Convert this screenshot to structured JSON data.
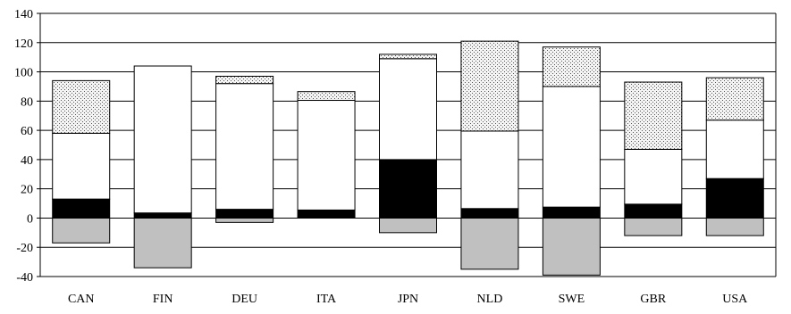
{
  "chart_data": {
    "type": "bar",
    "stacked": true,
    "title": "",
    "xlabel": "",
    "ylabel": "",
    "ylim": [
      -40,
      140
    ],
    "yticks": [
      -40,
      -20,
      0,
      20,
      40,
      60,
      80,
      100,
      120,
      140
    ],
    "grid": true,
    "legend": "none",
    "categories": [
      "CAN",
      "FIN",
      "DEU",
      "ITA",
      "JPN",
      "NLD",
      "SWE",
      "GBR",
      "USA"
    ],
    "series": [
      {
        "key": "s1",
        "fill": "#000000",
        "pattern": "solid",
        "values": [
          13,
          3.5,
          6,
          5.5,
          40,
          6.5,
          7.5,
          9.5,
          27
        ]
      },
      {
        "key": "s2",
        "fill": "#ffffff",
        "pattern": "solid",
        "values": [
          45,
          100.5,
          86,
          75,
          69,
          53,
          82.5,
          37.5,
          40
        ]
      },
      {
        "key": "s3",
        "fill": "#e8e8e8",
        "pattern": "dotted",
        "values": [
          36,
          0,
          5,
          6,
          3,
          61.5,
          27,
          46,
          29
        ]
      },
      {
        "key": "s4",
        "fill": "#c0c0c0",
        "pattern": "solid",
        "values": [
          -17,
          -34,
          -3,
          0,
          -10,
          -35,
          -39,
          -12,
          -12
        ]
      }
    ]
  }
}
